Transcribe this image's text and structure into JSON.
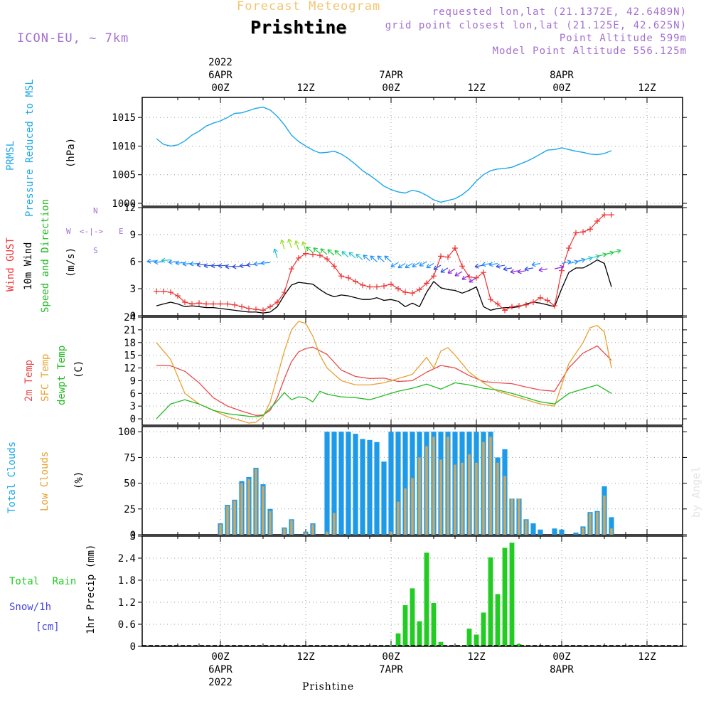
{
  "header": {
    "forecast_title": "Forecast Meteogram",
    "location": "Prishtine",
    "model": "ICON-EU, ~ 7km",
    "requested": "requested lon,lat (21.1372E, 42.6489N)",
    "grid_point": "grid point closest lon,lat (21.125E, 42.625N)",
    "point_altitude": "Point Altitude 599m",
    "model_altitude": "Model Point Altitude 556.125m"
  },
  "footer": {
    "location": "Prishtine",
    "credit": "by Angel"
  },
  "colors": {
    "pressure": "#1ea7e8",
    "gust": "#ee3333",
    "wind": "#000000",
    "t2m": "#e84c4c",
    "tsfc": "#e8a030",
    "dewpt": "#22bb22",
    "total_clouds": "#1e9be8",
    "low_clouds": "#c9a864",
    "rain": "#22cc22",
    "snow": "#4444dd",
    "label_purple": "#a36fcf",
    "title_orange": "#f2c472"
  },
  "chart_data": [
    {
      "name": "prmsl",
      "type": "line",
      "labels": [
        "PRMSL",
        "Pressure Reduced to MSL"
      ],
      "unit": "(hPa)",
      "x_unit": "hours from 2022-04-05 03Z",
      "ylim": [
        999.5,
        1018.5
      ],
      "yticks": [
        1000,
        1005,
        1010,
        1015
      ],
      "x": [
        0,
        1,
        2,
        3,
        4,
        5,
        6,
        7,
        8,
        9,
        10,
        11,
        12,
        13,
        14,
        15,
        16,
        17,
        18,
        19,
        20,
        21,
        22,
        23,
        24,
        25,
        26,
        27,
        28,
        29,
        30,
        31,
        32,
        33,
        34,
        35,
        36,
        37,
        38,
        39,
        40,
        41,
        42,
        43,
        44,
        45,
        46,
        47,
        48,
        49,
        50,
        51,
        52,
        53,
        54,
        55,
        56,
        57,
        58,
        59,
        60,
        61,
        62,
        63,
        64
      ],
      "values": [
        1011.3,
        1010.3,
        1010.0,
        1010.2,
        1010.9,
        1011.9,
        1012.6,
        1013.5,
        1014.0,
        1014.4,
        1015.0,
        1015.7,
        1015.8,
        1016.2,
        1016.6,
        1016.8,
        1016.3,
        1015.2,
        1013.7,
        1011.9,
        1010.8,
        1010.0,
        1009.3,
        1008.8,
        1008.9,
        1009.1,
        1008.6,
        1007.8,
        1006.8,
        1005.7,
        1004.9,
        1004.0,
        1003.0,
        1002.4,
        1002.0,
        1001.8,
        1002.3,
        1002.0,
        1001.4,
        1000.6,
        1000.2,
        1000.5,
        1000.8,
        1001.5,
        1002.5,
        1003.9,
        1005.0,
        1005.7,
        1006.0,
        1006.1,
        1006.3,
        1006.8,
        1007.3,
        1007.9,
        1008.6,
        1009.3,
        1009.4,
        1009.7,
        1009.4,
        1009.1,
        1008.9,
        1008.6,
        1008.5,
        1008.7,
        1009.2
      ]
    },
    {
      "name": "wind",
      "type": "line",
      "labels": [
        "Wind GUST",
        "10m Wind",
        "Speed and Direction"
      ],
      "unit": "(m/s)",
      "x_unit": "hours from 2022-04-05 03Z",
      "ylim": [
        0,
        12
      ],
      "yticks": [
        0,
        3,
        6,
        9,
        12
      ],
      "direction_legend": {
        "w": "W",
        "e": "E",
        "n": "N",
        "s": "S",
        "arrow": "<-|->"
      },
      "series": [
        {
          "name": "Wind GUST",
          "x": [
            0,
            1,
            2,
            3,
            4,
            5,
            6,
            7,
            8,
            9,
            10,
            11,
            12,
            13,
            14,
            15,
            16,
            17,
            18,
            19,
            20,
            21,
            22,
            23,
            24,
            25,
            26,
            27,
            28,
            29,
            30,
            31,
            32,
            33,
            34,
            35,
            36,
            37,
            38,
            39,
            40,
            41,
            42,
            43,
            44,
            45,
            46,
            47,
            48,
            49,
            50,
            51,
            52,
            53,
            54,
            55,
            56,
            57,
            58,
            59,
            60,
            61,
            62,
            63,
            64
          ],
          "values": [
            2.7,
            2.7,
            2.6,
            2.2,
            1.5,
            1.3,
            1.4,
            1.3,
            1.3,
            1.3,
            1.3,
            1.2,
            1.0,
            0.8,
            0.7,
            0.6,
            1.0,
            1.5,
            2.6,
            5.2,
            6.4,
            6.9,
            6.8,
            6.7,
            6.3,
            5.5,
            4.4,
            4.2,
            3.8,
            3.4,
            3.2,
            3.2,
            3.3,
            3.5,
            3.0,
            2.6,
            2.5,
            2.9,
            3.6,
            4.4,
            6.6,
            6.5,
            7.5,
            5.5,
            4.3,
            4.2,
            4.8,
            1.8,
            1.3,
            0.6,
            1.0,
            1.1,
            1.2,
            1.5,
            2.0,
            1.7,
            1.1,
            5.0,
            7.5,
            9.2,
            9.3,
            9.6,
            10.5,
            11.2,
            11.2
          ]
        },
        {
          "name": "10m Wind",
          "x": [
            0,
            1,
            2,
            3,
            4,
            5,
            6,
            7,
            8,
            9,
            10,
            11,
            12,
            13,
            14,
            15,
            16,
            17,
            18,
            19,
            20,
            21,
            22,
            23,
            24,
            25,
            26,
            27,
            28,
            29,
            30,
            31,
            32,
            33,
            34,
            35,
            36,
            37,
            38,
            39,
            40,
            41,
            42,
            43,
            44,
            45,
            46,
            47,
            48,
            49,
            50,
            51,
            52,
            53,
            54,
            55,
            56,
            57,
            58,
            59,
            60,
            61,
            62,
            63,
            64
          ],
          "values": [
            1.1,
            1.3,
            1.5,
            1.3,
            1.0,
            1.1,
            1.0,
            0.9,
            0.9,
            0.8,
            0.7,
            0.6,
            0.5,
            0.4,
            0.4,
            0.3,
            0.4,
            1.0,
            2.3,
            3.4,
            3.7,
            3.6,
            3.5,
            2.9,
            2.4,
            2.1,
            2.3,
            2.2,
            2.0,
            1.8,
            1.8,
            2.0,
            1.7,
            1.8,
            1.6,
            1.0,
            1.4,
            1.0,
            2.6,
            3.8,
            3.1,
            2.9,
            2.8,
            2.5,
            2.8,
            3.2,
            1.0,
            0.6,
            0.8,
            0.9,
            0.9,
            1.0,
            1.3,
            1.5,
            1.4,
            1.2,
            1.0,
            3.0,
            4.8,
            5.3,
            5.3,
            5.7,
            6.2,
            5.8,
            3.2
          ]
        }
      ]
    },
    {
      "name": "temperature",
      "type": "line",
      "labels": [
        "2m Temp",
        "SFC Temp",
        "dewpt Temp"
      ],
      "unit": "(C)",
      "x_unit": "hours from 2022-04-05 03Z",
      "ylim": [
        -1.5,
        24
      ],
      "yticks": [
        0,
        3,
        6,
        9,
        12,
        15,
        18,
        21,
        24
      ],
      "series": [
        {
          "name": "2m Temp",
          "x": [
            0,
            2,
            4,
            6,
            8,
            10,
            12,
            13,
            14,
            15,
            16,
            17,
            18,
            19,
            20,
            21,
            22,
            24,
            26,
            28,
            30,
            32,
            34,
            36,
            38,
            40,
            42,
            44,
            46,
            48,
            50,
            52,
            54,
            56,
            58,
            60,
            62,
            64
          ],
          "values": [
            12.6,
            12.5,
            11.2,
            8.5,
            5.0,
            3.0,
            1.8,
            1.3,
            0.8,
            0.9,
            2.0,
            5.0,
            9.5,
            13.5,
            15.8,
            16.6,
            16.9,
            15.2,
            11.5,
            10.0,
            9.5,
            9.6,
            8.8,
            9.0,
            11.0,
            12.6,
            12.0,
            10.2,
            8.8,
            8.5,
            8.3,
            7.5,
            6.8,
            6.5,
            12.0,
            15.5,
            17.2,
            13.8
          ]
        },
        {
          "name": "SFC Temp",
          "x": [
            0,
            2,
            4,
            6,
            8,
            10,
            12,
            13,
            14,
            15,
            16,
            17,
            18,
            19,
            20,
            21,
            22,
            23,
            24,
            26,
            28,
            30,
            32,
            34,
            36,
            38,
            39,
            40,
            41,
            42,
            44,
            46,
            48,
            50,
            52,
            54,
            56,
            58,
            60,
            61,
            62,
            63,
            64
          ],
          "values": [
            18.0,
            14.0,
            6.0,
            3.5,
            2.0,
            0.5,
            -0.5,
            -1.0,
            -0.8,
            0.5,
            4.0,
            10.0,
            16.0,
            21.0,
            23.0,
            22.5,
            19.5,
            15.0,
            12.0,
            9.0,
            8.0,
            8.0,
            8.5,
            9.5,
            10.5,
            14.5,
            12.0,
            16.0,
            16.8,
            15.0,
            11.0,
            8.5,
            6.5,
            5.5,
            4.5,
            3.5,
            3.0,
            13.0,
            18.0,
            21.5,
            22.0,
            20.5,
            12.0
          ]
        },
        {
          "name": "dewpt Temp",
          "x": [
            0,
            2,
            4,
            6,
            8,
            10,
            12,
            13,
            14,
            15,
            16,
            17,
            18,
            19,
            20,
            21,
            22,
            23,
            24,
            26,
            28,
            30,
            32,
            34,
            36,
            38,
            40,
            42,
            44,
            46,
            48,
            50,
            52,
            54,
            56,
            58,
            60,
            62,
            64
          ],
          "values": [
            0.0,
            3.5,
            4.5,
            3.5,
            2.0,
            1.2,
            0.8,
            0.6,
            0.5,
            0.8,
            2.5,
            4.2,
            6.2,
            4.5,
            5.2,
            5.0,
            4.0,
            6.5,
            5.8,
            5.2,
            5.0,
            4.5,
            5.5,
            6.5,
            7.2,
            8.2,
            7.0,
            8.5,
            8.0,
            7.2,
            6.8,
            6.0,
            5.0,
            4.0,
            3.5,
            6.0,
            7.0,
            8.0,
            6.0
          ]
        }
      ]
    },
    {
      "name": "clouds",
      "type": "bar",
      "labels": [
        "Total Clouds",
        "Low Clouds"
      ],
      "unit": "(%)",
      "x_unit": "hours from 2022-04-05 03Z",
      "ylim": [
        0,
        105
      ],
      "yticks": [
        0,
        25,
        50,
        75,
        100
      ],
      "x": [
        0,
        1,
        2,
        3,
        4,
        5,
        6,
        7,
        8,
        9,
        10,
        11,
        12,
        13,
        14,
        15,
        16,
        17,
        18,
        19,
        20,
        21,
        22,
        23,
        24,
        25,
        26,
        27,
        28,
        29,
        30,
        31,
        32,
        33,
        34,
        35,
        36,
        37,
        38,
        39,
        40,
        41,
        42,
        43,
        44,
        45,
        46,
        47,
        48,
        49,
        50,
        51,
        52,
        53,
        54,
        55,
        56,
        57,
        58,
        59,
        60,
        61,
        62,
        63,
        64
      ],
      "series": [
        {
          "name": "Total Clouds",
          "values": [
            0,
            0,
            0,
            0,
            0,
            0,
            0,
            0,
            0,
            11,
            29,
            34,
            52,
            56,
            65,
            49,
            25,
            0,
            7,
            15,
            0,
            3,
            11,
            0,
            100,
            100,
            100,
            100,
            98,
            93,
            92,
            90,
            71,
            100,
            100,
            100,
            100,
            100,
            100,
            100,
            100,
            100,
            100,
            100,
            100,
            100,
            100,
            100,
            75,
            83,
            35,
            35,
            15,
            11,
            5,
            0,
            6,
            5,
            0,
            2,
            8,
            22,
            23,
            47,
            17
          ]
        },
        {
          "name": "Low Clouds",
          "values": [
            0,
            0,
            0,
            0,
            0,
            0,
            0,
            0,
            0,
            10,
            28,
            33,
            50,
            54,
            64,
            47,
            23,
            0,
            6,
            14,
            0,
            2,
            10,
            0,
            3,
            21,
            0,
            0,
            0,
            0,
            0,
            0,
            0,
            3,
            32,
            45,
            55,
            75,
            86,
            95,
            73,
            95,
            68,
            70,
            78,
            70,
            90,
            95,
            70,
            57,
            35,
            35,
            14,
            0,
            0,
            0,
            0,
            0,
            0,
            0,
            7,
            21,
            22,
            38,
            6
          ]
        }
      ]
    },
    {
      "name": "precip",
      "type": "bar",
      "labels": [
        "Total Rain",
        "Snow/1h",
        "[cm]"
      ],
      "unit": "1hr Precip (mm)",
      "x_unit": "hours from 2022-04-05 03Z",
      "ylim": [
        0,
        3
      ],
      "yticks": [
        0,
        0.6,
        1.2,
        1.8,
        2.4,
        3
      ],
      "x": [
        0,
        1,
        2,
        3,
        4,
        5,
        6,
        7,
        8,
        9,
        10,
        11,
        12,
        13,
        14,
        15,
        16,
        17,
        18,
        19,
        20,
        21,
        22,
        23,
        24,
        25,
        26,
        27,
        28,
        29,
        30,
        31,
        32,
        33,
        34,
        35,
        36,
        37,
        38,
        39,
        40,
        41,
        42,
        43,
        44,
        45,
        46,
        47,
        48,
        49,
        50,
        51,
        52,
        53,
        54,
        55,
        56,
        57,
        58,
        59,
        60,
        61,
        62,
        63,
        64
      ],
      "series": [
        {
          "name": "Total Rain",
          "values": [
            0,
            0,
            0,
            0,
            0,
            0,
            0,
            0,
            0,
            0,
            0,
            0,
            0,
            0,
            0,
            0,
            0,
            0,
            0,
            0,
            0,
            0,
            0,
            0,
            0,
            0,
            0,
            0,
            0,
            0,
            0,
            0,
            0,
            0.02,
            0.35,
            1.12,
            1.58,
            0.68,
            2.55,
            1.18,
            0.12,
            0,
            0,
            0.02,
            0.48,
            0.32,
            0.92,
            2.42,
            1.42,
            2.68,
            2.82,
            0.06,
            0,
            0,
            0,
            0,
            0,
            0,
            0,
            0,
            0,
            0,
            0,
            0,
            0
          ]
        }
      ]
    }
  ],
  "time_axis": {
    "major_ticks": [
      {
        "hour": 9,
        "label": "00Z"
      },
      {
        "hour": 21,
        "label": "12Z"
      },
      {
        "hour": 33,
        "label": "00Z"
      },
      {
        "hour": 45,
        "label": "12Z"
      },
      {
        "hour": 57,
        "label": "00Z"
      },
      {
        "hour": 69,
        "label": "12Z"
      }
    ],
    "minor_ticks": [
      3,
      6,
      15,
      18,
      27,
      30,
      39,
      42,
      51,
      54,
      63,
      66
    ],
    "top_dates": [
      {
        "hour": 9,
        "date": "6APR",
        "year": "2022"
      },
      {
        "hour": 33,
        "date": "7APR",
        "year": ""
      },
      {
        "hour": 57,
        "date": "8APR",
        "year": ""
      }
    ],
    "bottom_dates": [
      {
        "hour": 9,
        "date": "6APR",
        "year": "2022"
      },
      {
        "hour": 33,
        "date": "7APR",
        "year": ""
      },
      {
        "hour": 57,
        "date": "8APR",
        "year": ""
      }
    ],
    "xmin_hour": -2,
    "xmax_hour": 74
  }
}
